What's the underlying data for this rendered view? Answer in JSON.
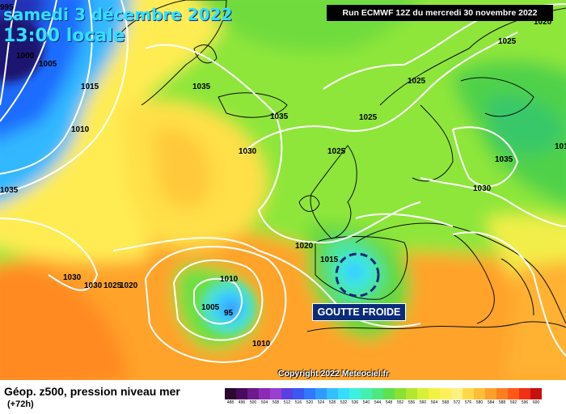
{
  "map": {
    "date_title": "samedi 3 décembre 2022",
    "time_title": "13:00 locale",
    "run_label": "Run ECMWF 12Z du mercredi 30 novembre 2022",
    "annotation": "GOUTTE FROIDE",
    "copyright": "Copyright 2022 Meteociel.fr",
    "parameter": "Géop. z500, pression niveau mer",
    "lead_time": "(+72h)",
    "isobar_labels": [
      "995",
      "1000",
      "1005",
      "1015",
      "1010",
      "1035",
      "1035",
      "1030",
      "1025",
      "1025",
      "1020",
      "1025",
      "1035",
      "1025",
      "1030",
      "1030",
      "1010",
      "1020",
      "1015",
      "1010",
      "1005",
      "95",
      "1010",
      "1030",
      "1025",
      "1020",
      "1035"
    ],
    "colors": {
      "deep_low": "#2b1d7a",
      "low": "#1e6bff",
      "cyan": "#35d8ff",
      "green": "#5fd53a",
      "yellow": "#ffef4a",
      "orange": "#ffa726",
      "isobar": "#ffffff"
    }
  },
  "legend": {
    "values": [
      "488",
      "496",
      "500",
      "504",
      "508",
      "512",
      "516",
      "520",
      "524",
      "528",
      "532",
      "536",
      "540",
      "544",
      "548",
      "552",
      "556",
      "560",
      "564",
      "568",
      "572",
      "576",
      "580",
      "584",
      "588",
      "592",
      "596",
      "600"
    ],
    "colors": [
      "#2a0a2e",
      "#4a0a5e",
      "#6d1a8c",
      "#8b2bb5",
      "#9a3fd0",
      "#5b3fe0",
      "#3b58f0",
      "#2f78ff",
      "#2e9bff",
      "#33c0ff",
      "#37dcff",
      "#3ff0e0",
      "#44f0b0",
      "#4ee880",
      "#5fe050",
      "#8ae033",
      "#b2e830",
      "#d8f038",
      "#f2f242",
      "#fff05a",
      "#fff080",
      "#ffd84a",
      "#ffbd38",
      "#ff9f2c",
      "#ff7e22",
      "#ff5a1a",
      "#f03014",
      "#c81010"
    ]
  }
}
